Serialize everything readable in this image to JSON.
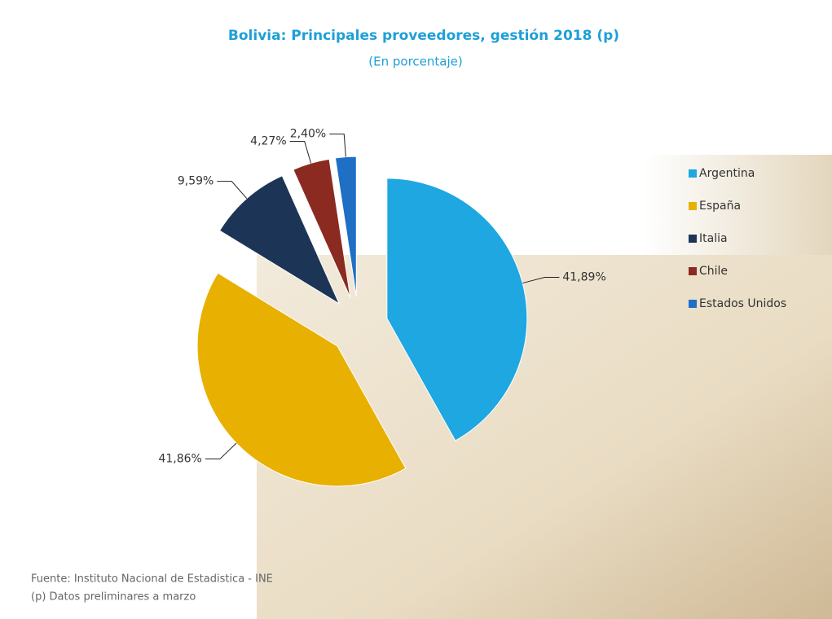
{
  "chart_data": {
    "type": "pie",
    "title": "Bolivia: Principales proveedores, gestión 2018 (p)",
    "subtitle": "(En porcentaje)",
    "categories": [
      "Argentina",
      "España",
      "Italia",
      "Chile",
      "Estados Unidos"
    ],
    "values": [
      41.89,
      41.86,
      9.59,
      4.27,
      2.4
    ],
    "value_labels": [
      "41,89%",
      "41,86%",
      "9,59%",
      "4,27%",
      "2,40%"
    ],
    "colors": [
      "#1ea7e1",
      "#e8b000",
      "#1c3557",
      "#8b2a20",
      "#1f6fc5"
    ],
    "legend": "right",
    "source": "Fuente: Instituto Nacional de Estadistica - INE",
    "note": "(p) Datos preliminares a marzo"
  }
}
